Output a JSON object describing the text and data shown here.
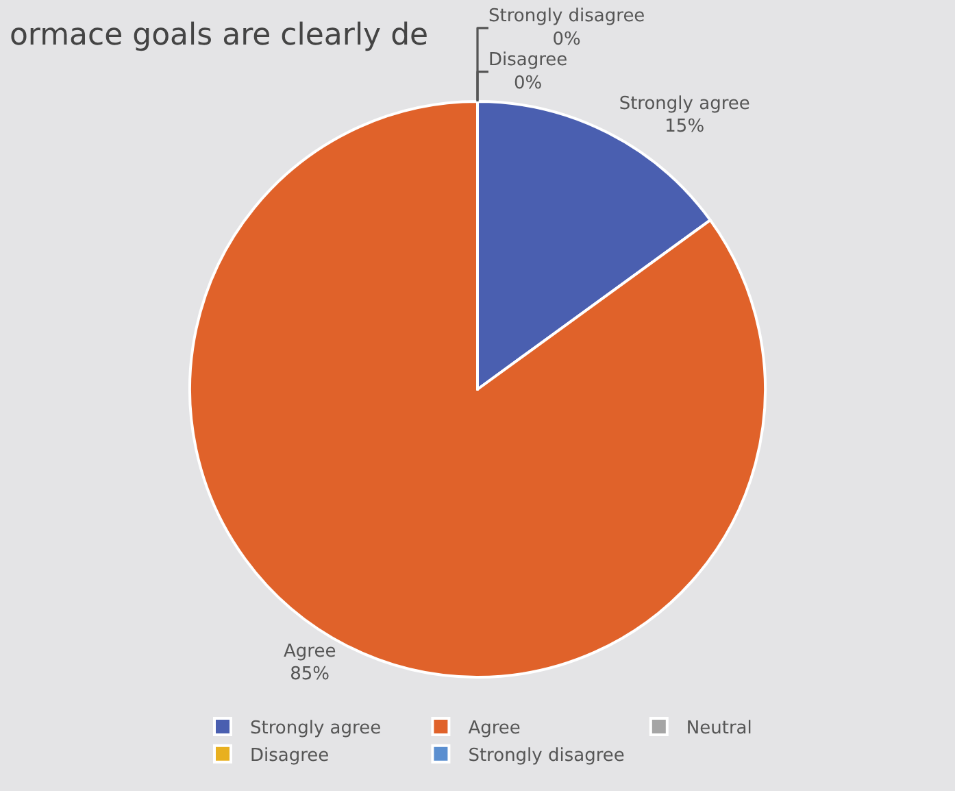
{
  "chart_data": {
    "type": "pie",
    "title": "ormace goals are clearly de",
    "categories": [
      "Strongly agree",
      "Agree",
      "Neutral",
      "Disagree",
      "Strongly disagree"
    ],
    "values": [
      15,
      85,
      0,
      0,
      0
    ],
    "colors": [
      "#4a5fb0",
      "#e0622a",
      "#a5a5a5",
      "#e8b020",
      "#5b8fd0"
    ],
    "value_labels": [
      "Strongly agree\n15%",
      "Agree\n85%",
      null,
      "Disagree\n0%",
      "Strongly disagree\n0%"
    ],
    "legend": "bottom"
  }
}
